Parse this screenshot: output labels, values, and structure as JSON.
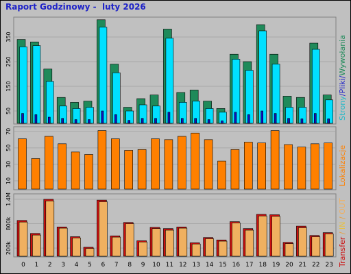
{
  "page": {
    "title": "Raport Godzinowy -  luty 2026"
  },
  "right_labels": {
    "panel1": [
      {
        "text": "Strony",
        "color": "#24b8c8"
      },
      {
        "text": "/",
        "color": "#1f23c8"
      },
      {
        "text": "Pliki",
        "color": "#1f23c8"
      },
      {
        "text": "/",
        "color": "#1f23c8"
      },
      {
        "text": "Wywołania",
        "color": "#1f8a5a"
      }
    ],
    "panel2": [
      {
        "text": "Lokalizacje",
        "color": "#ff8000"
      }
    ],
    "panel3": [
      {
        "text": "Transfer",
        "color": "#cc1010"
      },
      {
        "text": " / ",
        "color": "#e8a040"
      },
      {
        "text": "IN",
        "color": "#e8c040"
      },
      {
        "text": " / ",
        "color": "#e8a040"
      },
      {
        "text": "OUT",
        "color": "#f0b060"
      }
    ]
  },
  "colors": {
    "hits": "#1f8a5a",
    "files": "#00e0ff",
    "pages": "#1010c0",
    "visits": "#ff8000",
    "kbytes": "#cc1010",
    "kbytes_in": "#e8c040",
    "kbytes_out": "#f0b060",
    "panel_bg": "#c0c0c0"
  },
  "chart_data": [
    {
      "type": "bar",
      "name_hint": "requests",
      "categories": [
        "0",
        "1",
        "2",
        "3",
        "4",
        "5",
        "6",
        "7",
        "8",
        "9",
        "10",
        "11",
        "12",
        "13",
        "14",
        "15",
        "16",
        "17",
        "18",
        "19",
        "20",
        "21",
        "22",
        "23"
      ],
      "ylim": [
        0,
        425
      ],
      "yticks": [
        "50",
        "150",
        "250",
        "350"
      ],
      "series": [
        {
          "name": "Wywołania",
          "values": [
            340,
            330,
            220,
            105,
            85,
            90,
            420,
            240,
            65,
            100,
            115,
            382,
            125,
            135,
            90,
            60,
            280,
            250,
            400,
            280,
            110,
            105,
            325,
            115
          ]
        },
        {
          "name": "Pliki",
          "values": [
            310,
            315,
            170,
            70,
            60,
            65,
            390,
            205,
            50,
            75,
            70,
            345,
            85,
            90,
            60,
            45,
            260,
            215,
            375,
            240,
            65,
            65,
            300,
            95
          ]
        },
        {
          "name": "Strony",
          "values": [
            40,
            35,
            25,
            20,
            15,
            15,
            50,
            35,
            12,
            20,
            20,
            45,
            20,
            20,
            15,
            10,
            45,
            35,
            50,
            40,
            20,
            18,
            40,
            18
          ]
        }
      ]
    },
    {
      "type": "bar",
      "name_hint": "visits",
      "categories": [
        "0",
        "1",
        "2",
        "3",
        "4",
        "5",
        "6",
        "7",
        "8",
        "9",
        "10",
        "11",
        "12",
        "13",
        "14",
        "15",
        "16",
        "17",
        "18",
        "19",
        "20",
        "21",
        "22",
        "23"
      ],
      "ylim": [
        0,
        74
      ],
      "yticks": [
        "10",
        "30",
        "50",
        "70"
      ],
      "series": [
        {
          "name": "Lokalizacje",
          "values": [
            61,
            37,
            64,
            55,
            45,
            42,
            71,
            61,
            47,
            48,
            61,
            60,
            64,
            68,
            60,
            34,
            48,
            57,
            56,
            71,
            54,
            51,
            55,
            56
          ]
        }
      ]
    },
    {
      "type": "bar",
      "name_hint": "transfer",
      "categories": [
        "0",
        "1",
        "2",
        "3",
        "4",
        "5",
        "6",
        "7",
        "8",
        "9",
        "10",
        "11",
        "12",
        "13",
        "14",
        "15",
        "16",
        "17",
        "18",
        "19",
        "20",
        "21",
        "22",
        "23"
      ],
      "ylim": [
        0,
        1500000
      ],
      "yticks": [
        "200k",
        "800k",
        "1.4M"
      ],
      "series": [
        {
          "name": "Transfer",
          "values": [
            880000,
            560000,
            1400000,
            720000,
            480000,
            220000,
            1380000,
            500000,
            830000,
            380000,
            710000,
            680000,
            720000,
            330000,
            460000,
            400000,
            850000,
            680000,
            1030000,
            1020000,
            340000,
            740000,
            510000,
            580000
          ]
        },
        {
          "name": "OUT",
          "values": [
            840000,
            520000,
            1360000,
            690000,
            450000,
            190000,
            1340000,
            470000,
            800000,
            350000,
            680000,
            640000,
            690000,
            300000,
            430000,
            370000,
            820000,
            640000,
            990000,
            980000,
            310000,
            700000,
            480000,
            550000
          ]
        }
      ]
    }
  ]
}
